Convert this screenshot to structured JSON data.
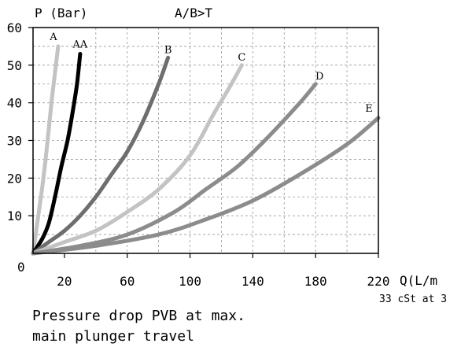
{
  "chart_data": {
    "type": "line",
    "title": "A/B>T",
    "ylabel": "P (Bar)",
    "xlabel": "Q(L/m",
    "xlabel_note": "33 cSt at 3",
    "origin_label": "0",
    "xlim": [
      0,
      220
    ],
    "ylim": [
      0,
      60
    ],
    "xticks": [
      20,
      60,
      100,
      140,
      180,
      220
    ],
    "yticks": [
      10,
      20,
      30,
      40,
      50,
      60
    ],
    "grid": true,
    "grid_style": "dashed",
    "series": [
      {
        "name": "A",
        "color": "#c3c3c3",
        "points": [
          [
            0,
            0
          ],
          [
            2,
            6
          ],
          [
            4,
            12
          ],
          [
            6,
            18
          ],
          [
            8,
            25
          ],
          [
            10,
            33
          ],
          [
            12,
            41
          ],
          [
            14,
            48
          ],
          [
            16,
            55
          ]
        ]
      },
      {
        "name": "AA",
        "color": "#000000",
        "points": [
          [
            0,
            0
          ],
          [
            6,
            4
          ],
          [
            10,
            8
          ],
          [
            14,
            15
          ],
          [
            18,
            23
          ],
          [
            22,
            30
          ],
          [
            25,
            37
          ],
          [
            28,
            45
          ],
          [
            30,
            53
          ]
        ]
      },
      {
        "name": "B",
        "color": "#6e6e6e",
        "points": [
          [
            0,
            0
          ],
          [
            10,
            3
          ],
          [
            20,
            6
          ],
          [
            30,
            10
          ],
          [
            40,
            15
          ],
          [
            50,
            21
          ],
          [
            60,
            27
          ],
          [
            70,
            35
          ],
          [
            80,
            45
          ],
          [
            86,
            52
          ]
        ]
      },
      {
        "name": "C",
        "color": "#c3c3c3",
        "points": [
          [
            0,
            0
          ],
          [
            20,
            3
          ],
          [
            40,
            6
          ],
          [
            60,
            11
          ],
          [
            80,
            17
          ],
          [
            100,
            26
          ],
          [
            115,
            37
          ],
          [
            125,
            44
          ],
          [
            133,
            50
          ]
        ]
      },
      {
        "name": "D",
        "color": "#8c8c8c",
        "points": [
          [
            0,
            0
          ],
          [
            30,
            2
          ],
          [
            60,
            5
          ],
          [
            90,
            11
          ],
          [
            110,
            17
          ],
          [
            130,
            23
          ],
          [
            150,
            31
          ],
          [
            170,
            40
          ],
          [
            180,
            45
          ]
        ]
      },
      {
        "name": "E",
        "color": "#8c8c8c",
        "points": [
          [
            0,
            0
          ],
          [
            40,
            2
          ],
          [
            80,
            5
          ],
          [
            110,
            9
          ],
          [
            140,
            14
          ],
          [
            170,
            21
          ],
          [
            200,
            29
          ],
          [
            220,
            36
          ]
        ]
      }
    ]
  },
  "caption": {
    "line1": "Pressure drop PVB at max.",
    "line2": "main plunger travel"
  }
}
